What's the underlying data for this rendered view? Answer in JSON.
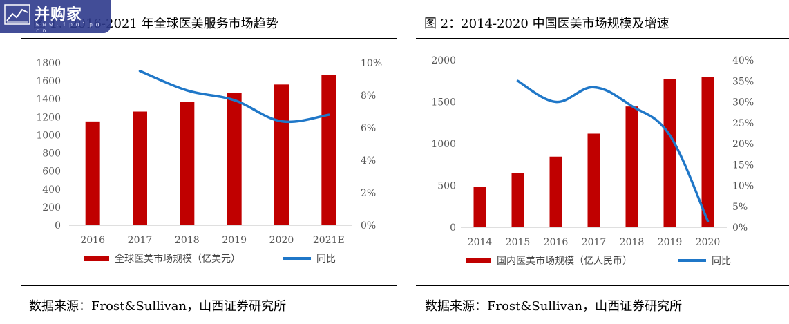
{
  "watermark": {
    "brand": "并购家",
    "url": "w w w . i p o l p o . c n"
  },
  "charts": [
    {
      "title": "图 1：2016-2021 年全球医美服务市场趋势",
      "source": "数据来源：Frost&Sullivan，山西证券研究所"
    },
    {
      "title": "图 2：2014-2020 中国医美市场规模及增速",
      "source": "数据来源：Frost&Sullivan，山西证券研究所"
    }
  ],
  "chart_data": [
    {
      "type": "bar",
      "categories": [
        "2016",
        "2017",
        "2018",
        "2019",
        "2020",
        "2021E"
      ],
      "series": [
        {
          "name": "全球医美市场规模（亿美元）",
          "type": "bar",
          "axis": "left",
          "color": "#c00000",
          "values": [
            1150,
            1260,
            1365,
            1470,
            1560,
            1665
          ]
        },
        {
          "name": "同比",
          "type": "line",
          "axis": "right",
          "color": "#1f77c8",
          "values": [
            null,
            9.5,
            8.3,
            7.7,
            6.4,
            6.8
          ]
        }
      ],
      "ylim": [
        0,
        1800
      ],
      "yticks": [
        "0",
        "200",
        "400",
        "600",
        "800",
        "1000",
        "1200",
        "1400",
        "1600",
        "1800"
      ],
      "y2lim": [
        0,
        10
      ],
      "y2ticks": [
        "0%",
        "2%",
        "4%",
        "6%",
        "8%",
        "10%"
      ],
      "legend": "bottom",
      "grid": false
    },
    {
      "type": "bar",
      "categories": [
        "2014",
        "2015",
        "2016",
        "2017",
        "2018",
        "2019",
        "2020"
      ],
      "series": [
        {
          "name": "国内医美市场规模（亿人民币）",
          "type": "bar",
          "axis": "left",
          "color": "#c00000",
          "values": [
            480,
            645,
            845,
            1120,
            1445,
            1770,
            1795
          ]
        },
        {
          "name": "同比",
          "type": "line",
          "axis": "right",
          "color": "#1f77c8",
          "values": [
            null,
            35,
            30,
            33.5,
            29,
            22,
            1.5
          ]
        }
      ],
      "ylim": [
        0,
        2000
      ],
      "yticks": [
        "0",
        "500",
        "1000",
        "1500",
        "2000"
      ],
      "y2lim": [
        0,
        40
      ],
      "y2ticks": [
        "0%",
        "5%",
        "10%",
        "15%",
        "20%",
        "25%",
        "30%",
        "35%",
        "40%"
      ],
      "legend": "bottom",
      "grid": false
    }
  ]
}
